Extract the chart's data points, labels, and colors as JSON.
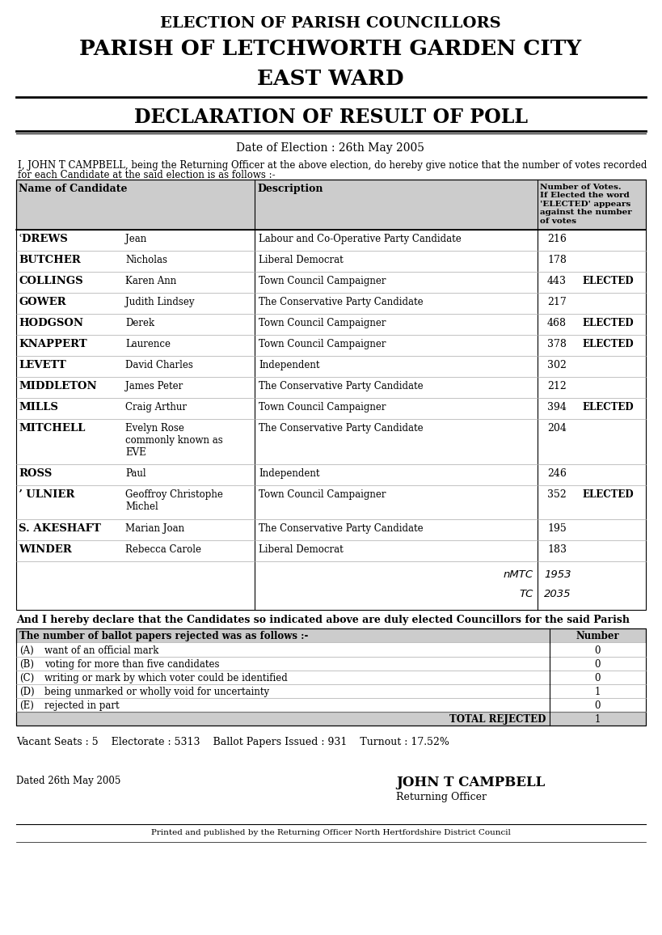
{
  "title1": "ELECTION OF PARISH COUNCILLORS",
  "title2": "PARISH OF LETCHWORTH GARDEN CITY",
  "title3": "EAST WARD",
  "declaration_title": "DECLARATION OF RESULT OF POLL",
  "date_line": "Date of Election : 26th May 2005",
  "intro_line1": "I, JOHN T CAMPBELL, being the Returning Officer at the above election, do hereby give notice that the number of votes recorded",
  "intro_line2": "for each Candidate at the said election is as follows :-",
  "col_header1": "Name of Candidate",
  "col_header2": "Description",
  "col_header3": "Number of Votes.\nIf Elected the word\n'ELECTED' appears\nagainst the number\nof votes",
  "candidates": [
    {
      "surname": "ʿDREWS",
      "firstname": "Jean",
      "description": "Labour and Co-Operative Party Candidate",
      "votes": "216",
      "elected": false
    },
    {
      "surname": "BUTCHER",
      "firstname": "Nicholas",
      "description": "Liberal Democrat",
      "votes": "178",
      "elected": false
    },
    {
      "surname": "COLLINGS",
      "firstname": "Karen Ann",
      "description": "Town Council Campaigner",
      "votes": "443",
      "elected": true
    },
    {
      "surname": "GOWER",
      "firstname": "Judith Lindsey",
      "description": "The Conservative Party Candidate",
      "votes": "217",
      "elected": false
    },
    {
      "surname": "HODGSON",
      "firstname": "Derek",
      "description": "Town Council Campaigner",
      "votes": "468",
      "elected": true
    },
    {
      "surname": "KNAPPERT",
      "firstname": "Laurence",
      "description": "Town Council Campaigner",
      "votes": "378",
      "elected": true
    },
    {
      "surname": "LEVETT",
      "firstname": "David Charles",
      "description": "Independent",
      "votes": "302",
      "elected": false
    },
    {
      "surname": "MIDDLETON",
      "firstname": "James Peter",
      "description": "The Conservative Party Candidate",
      "votes": "212",
      "elected": false
    },
    {
      "surname": "MILLS",
      "firstname": "Craig Arthur",
      "description": "Town Council Campaigner",
      "votes": "394",
      "elected": true
    },
    {
      "surname": "MITCHELL",
      "firstname": "Evelyn Rose\ncommonly known as\nEVE",
      "description": "The Conservative Party Candidate",
      "votes": "204",
      "elected": false
    },
    {
      "surname": "ROSS",
      "firstname": "Paul",
      "description": "Independent",
      "votes": "246",
      "elected": false
    },
    {
      "surname": "ʼ ULNIER",
      "firstname": "Geoffroy Christophe\nMichel",
      "description": "Town Council Campaigner",
      "votes": "352",
      "elected": true
    },
    {
      "surname": "S. AKESHAFT",
      "firstname": "Marian Joan",
      "description": "The Conservative Party Candidate",
      "votes": "195",
      "elected": false
    },
    {
      "surname": "WINDER",
      "firstname": "Rebecca Carole",
      "description": "Liberal Democrat",
      "votes": "183",
      "elected": false
    }
  ],
  "nmtc_label": "nMTC",
  "nmtc_value": "1953",
  "tc_label": "TC",
  "tc_value": "2035",
  "declaration_footer": "And I hereby declare that the Candidates so indicated above are duly elected Councillors for the said Parish",
  "rejected_header": "The number of ballot papers rejected was as follows :-",
  "rejected_col": "Number",
  "rejected_rows": [
    {
      "label": "(A)",
      "description": "want of an official mark",
      "value": "0"
    },
    {
      "label": "(B)",
      "description": "voting for more than five candidates",
      "value": "0"
    },
    {
      "label": "(C)",
      "description": "writing or mark by which voter could be identified",
      "value": "0"
    },
    {
      "label": "(D)",
      "description": "being unmarked or wholly void for uncertainty",
      "value": "1"
    },
    {
      "label": "(E)",
      "description": "rejected in part",
      "value": "0"
    }
  ],
  "total_rejected": "1",
  "footer_stats": "Vacant Seats : 5    Electorate : 5313    Ballot Papers Issued : 931    Turnout : 17.52%",
  "date_signed": "Dated 26th May 2005",
  "signatory_name": "JOHN T CAMPBELL",
  "signatory_title": "Returning Officer",
  "printed_by": "Printed and published by the Returning Officer North Hertfordshire District Council",
  "bg_color": "#ffffff",
  "table_header_bg": "#cccccc",
  "rejected_header_bg": "#cccccc"
}
